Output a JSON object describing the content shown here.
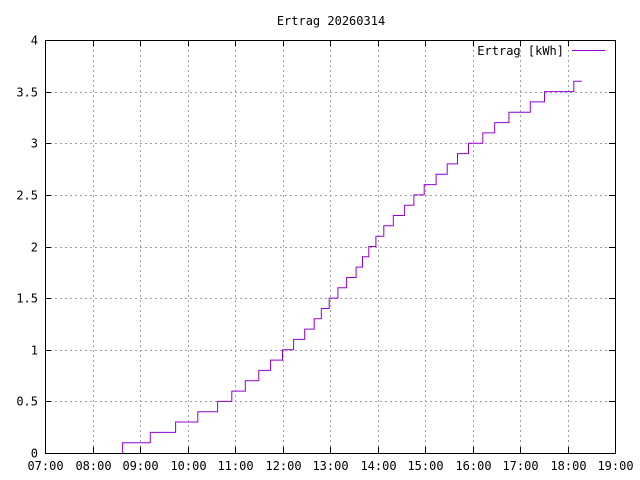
{
  "chart_data": {
    "type": "line",
    "title": "Ertrag 20260314",
    "xlabel": "",
    "ylabel": "",
    "x_axis_kind": "time",
    "xlim": [
      "07:00",
      "19:00"
    ],
    "ylim": [
      0,
      4
    ],
    "x_ticks": [
      "07:00",
      "08:00",
      "09:00",
      "10:00",
      "11:00",
      "12:00",
      "13:00",
      "14:00",
      "15:00",
      "16:00",
      "17:00",
      "18:00",
      "19:00"
    ],
    "y_ticks": [
      "0",
      "0.5",
      "1",
      "1.5",
      "2",
      "2.5",
      "3",
      "3.5",
      "4"
    ],
    "grid": true,
    "legend_position": "top-right",
    "series": [
      {
        "name": "Ertrag [kWh]",
        "color": "#9400d3",
        "step": true,
        "points": [
          [
            "08:38",
            0.0
          ],
          [
            "08:38",
            0.1
          ],
          [
            "09:13",
            0.1
          ],
          [
            "09:13",
            0.2
          ],
          [
            "09:45",
            0.2
          ],
          [
            "09:45",
            0.3
          ],
          [
            "10:13",
            0.3
          ],
          [
            "10:13",
            0.4
          ],
          [
            "10:38",
            0.4
          ],
          [
            "10:38",
            0.5
          ],
          [
            "10:56",
            0.5
          ],
          [
            "10:56",
            0.6
          ],
          [
            "11:13",
            0.6
          ],
          [
            "11:13",
            0.7
          ],
          [
            "11:30",
            0.7
          ],
          [
            "11:30",
            0.8
          ],
          [
            "11:45",
            0.8
          ],
          [
            "11:45",
            0.9
          ],
          [
            "12:00",
            0.9
          ],
          [
            "12:00",
            1.0
          ],
          [
            "12:14",
            1.0
          ],
          [
            "12:14",
            1.1
          ],
          [
            "12:28",
            1.1
          ],
          [
            "12:28",
            1.2
          ],
          [
            "12:40",
            1.2
          ],
          [
            "12:40",
            1.3
          ],
          [
            "12:49",
            1.3
          ],
          [
            "12:49",
            1.4
          ],
          [
            "12:59",
            1.4
          ],
          [
            "12:59",
            1.5
          ],
          [
            "13:10",
            1.5
          ],
          [
            "13:10",
            1.6
          ],
          [
            "13:21",
            1.6
          ],
          [
            "13:21",
            1.7
          ],
          [
            "13:33",
            1.7
          ],
          [
            "13:33",
            1.8
          ],
          [
            "13:41",
            1.8
          ],
          [
            "13:41",
            1.9
          ],
          [
            "13:49",
            1.9
          ],
          [
            "13:49",
            2.0
          ],
          [
            "13:58",
            2.0
          ],
          [
            "13:58",
            2.1
          ],
          [
            "14:08",
            2.1
          ],
          [
            "14:08",
            2.2
          ],
          [
            "14:20",
            2.2
          ],
          [
            "14:20",
            2.3
          ],
          [
            "14:34",
            2.3
          ],
          [
            "14:34",
            2.4
          ],
          [
            "14:46",
            2.4
          ],
          [
            "14:46",
            2.5
          ],
          [
            "14:59",
            2.5
          ],
          [
            "14:59",
            2.6
          ],
          [
            "15:14",
            2.6
          ],
          [
            "15:14",
            2.7
          ],
          [
            "15:28",
            2.7
          ],
          [
            "15:28",
            2.8
          ],
          [
            "15:41",
            2.8
          ],
          [
            "15:41",
            2.9
          ],
          [
            "15:55",
            2.9
          ],
          [
            "15:55",
            3.0
          ],
          [
            "16:13",
            3.0
          ],
          [
            "16:13",
            3.1
          ],
          [
            "16:28",
            3.1
          ],
          [
            "16:28",
            3.2
          ],
          [
            "16:46",
            3.2
          ],
          [
            "16:46",
            3.3
          ],
          [
            "17:13",
            3.3
          ],
          [
            "17:13",
            3.4
          ],
          [
            "17:31",
            3.4
          ],
          [
            "17:31",
            3.5
          ],
          [
            "18:08",
            3.5
          ],
          [
            "18:08",
            3.6
          ],
          [
            "18:18",
            3.6
          ]
        ]
      }
    ]
  }
}
